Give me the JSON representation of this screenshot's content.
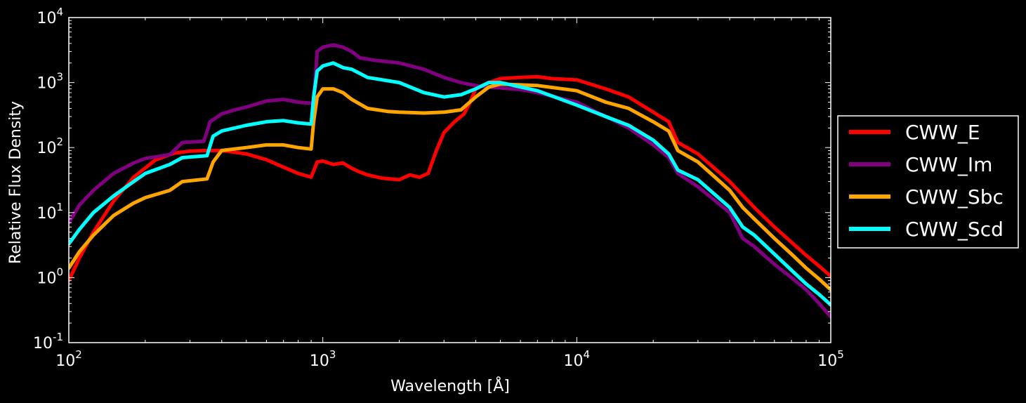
{
  "chart_data": {
    "type": "line",
    "xlabel": "Wavelength [Å]",
    "ylabel": "Relative Flux Density",
    "x_scale": "log",
    "y_scale": "log",
    "xlim": [
      100,
      100000
    ],
    "ylim": [
      0.1,
      10000
    ],
    "grid": false,
    "legend_position": "outside-right",
    "x_ticks": [
      {
        "base": "10",
        "exp": "2",
        "value": 100
      },
      {
        "base": "10",
        "exp": "3",
        "value": 1000
      },
      {
        "base": "10",
        "exp": "4",
        "value": 10000
      },
      {
        "base": "10",
        "exp": "5",
        "value": 100000
      }
    ],
    "y_ticks": [
      {
        "base": "10",
        "exp": "-1",
        "value": 0.1
      },
      {
        "base": "10",
        "exp": "0",
        "value": 1
      },
      {
        "base": "10",
        "exp": "1",
        "value": 10
      },
      {
        "base": "10",
        "exp": "2",
        "value": 100
      },
      {
        "base": "10",
        "exp": "3",
        "value": 1000
      },
      {
        "base": "10",
        "exp": "4",
        "value": 10000
      }
    ],
    "series": [
      {
        "name": "CWW_E",
        "color": "#ff0000",
        "points": [
          [
            100,
            0.9
          ],
          [
            110,
            2
          ],
          [
            125,
            5
          ],
          [
            150,
            15
          ],
          [
            180,
            35
          ],
          [
            220,
            65
          ],
          [
            260,
            82
          ],
          [
            300,
            88
          ],
          [
            350,
            90
          ],
          [
            400,
            90
          ],
          [
            500,
            80
          ],
          [
            600,
            65
          ],
          [
            700,
            50
          ],
          [
            800,
            40
          ],
          [
            900,
            35
          ],
          [
            950,
            60
          ],
          [
            1000,
            62
          ],
          [
            1100,
            55
          ],
          [
            1200,
            58
          ],
          [
            1300,
            48
          ],
          [
            1400,
            42
          ],
          [
            1500,
            38
          ],
          [
            1700,
            34
          ],
          [
            2000,
            32
          ],
          [
            2200,
            38
          ],
          [
            2400,
            35
          ],
          [
            2600,
            40
          ],
          [
            2800,
            90
          ],
          [
            3000,
            170
          ],
          [
            3300,
            250
          ],
          [
            3600,
            330
          ],
          [
            3800,
            500
          ],
          [
            4000,
            800
          ],
          [
            4500,
            1000
          ],
          [
            5000,
            1150
          ],
          [
            6000,
            1200
          ],
          [
            7000,
            1230
          ],
          [
            8000,
            1150
          ],
          [
            10000,
            1100
          ],
          [
            13000,
            800
          ],
          [
            16000,
            600
          ],
          [
            20000,
            350
          ],
          [
            23000,
            250
          ],
          [
            25000,
            120
          ],
          [
            30000,
            80
          ],
          [
            40000,
            30
          ],
          [
            50000,
            12
          ],
          [
            60000,
            6
          ],
          [
            70000,
            3.5
          ],
          [
            80000,
            2.2
          ],
          [
            90000,
            1.5
          ],
          [
            100000,
            1.05
          ]
        ]
      },
      {
        "name": "CWW_Im",
        "color": "#800080",
        "points": [
          [
            100,
            7
          ],
          [
            110,
            13
          ],
          [
            125,
            22
          ],
          [
            150,
            40
          ],
          [
            180,
            58
          ],
          [
            200,
            68
          ],
          [
            250,
            78
          ],
          [
            280,
            120
          ],
          [
            340,
            125
          ],
          [
            360,
            250
          ],
          [
            400,
            330
          ],
          [
            450,
            380
          ],
          [
            500,
            420
          ],
          [
            600,
            520
          ],
          [
            700,
            550
          ],
          [
            800,
            500
          ],
          [
            900,
            480
          ],
          [
            920,
            500
          ],
          [
            950,
            3000
          ],
          [
            1000,
            3500
          ],
          [
            1100,
            3800
          ],
          [
            1200,
            3500
          ],
          [
            1300,
            3000
          ],
          [
            1400,
            2400
          ],
          [
            1600,
            2200
          ],
          [
            2000,
            2000
          ],
          [
            2500,
            1600
          ],
          [
            3000,
            1200
          ],
          [
            3500,
            1000
          ],
          [
            4000,
            900
          ],
          [
            4500,
            850
          ],
          [
            5000,
            830
          ],
          [
            6000,
            780
          ],
          [
            7000,
            700
          ],
          [
            10000,
            500
          ],
          [
            13000,
            300
          ],
          [
            16000,
            200
          ],
          [
            20000,
            110
          ],
          [
            23000,
            70
          ],
          [
            25000,
            40
          ],
          [
            30000,
            25
          ],
          [
            40000,
            10
          ],
          [
            45000,
            4
          ],
          [
            50000,
            3
          ],
          [
            60000,
            1.6
          ],
          [
            70000,
            1
          ],
          [
            80000,
            0.65
          ],
          [
            90000,
            0.4
          ],
          [
            100000,
            0.25
          ]
        ]
      },
      {
        "name": "CWW_Sbc",
        "color": "#ffa500",
        "points": [
          [
            100,
            1.4
          ],
          [
            110,
            2.5
          ],
          [
            125,
            4.5
          ],
          [
            150,
            9
          ],
          [
            180,
            14
          ],
          [
            200,
            17
          ],
          [
            250,
            22
          ],
          [
            280,
            30
          ],
          [
            350,
            33
          ],
          [
            370,
            60
          ],
          [
            400,
            90
          ],
          [
            500,
            100
          ],
          [
            600,
            110
          ],
          [
            700,
            110
          ],
          [
            800,
            100
          ],
          [
            900,
            95
          ],
          [
            920,
            250
          ],
          [
            950,
            600
          ],
          [
            1000,
            800
          ],
          [
            1100,
            800
          ],
          [
            1200,
            700
          ],
          [
            1300,
            550
          ],
          [
            1500,
            400
          ],
          [
            1800,
            360
          ],
          [
            2000,
            350
          ],
          [
            2500,
            340
          ],
          [
            3000,
            350
          ],
          [
            3500,
            380
          ],
          [
            4000,
            600
          ],
          [
            4500,
            850
          ],
          [
            5000,
            950
          ],
          [
            7000,
            900
          ],
          [
            10000,
            750
          ],
          [
            13000,
            500
          ],
          [
            16000,
            400
          ],
          [
            20000,
            250
          ],
          [
            23000,
            180
          ],
          [
            25000,
            90
          ],
          [
            30000,
            60
          ],
          [
            40000,
            22
          ],
          [
            45000,
            12
          ],
          [
            50000,
            8
          ],
          [
            60000,
            4
          ],
          [
            70000,
            2.3
          ],
          [
            80000,
            1.4
          ],
          [
            90000,
            0.95
          ],
          [
            100000,
            0.65
          ]
        ]
      },
      {
        "name": "CWW_Scd",
        "color": "#00ffff",
        "points": [
          [
            100,
            3.3
          ],
          [
            110,
            5.5
          ],
          [
            125,
            10
          ],
          [
            150,
            18
          ],
          [
            180,
            30
          ],
          [
            200,
            40
          ],
          [
            250,
            55
          ],
          [
            280,
            70
          ],
          [
            350,
            75
          ],
          [
            370,
            150
          ],
          [
            400,
            180
          ],
          [
            500,
            220
          ],
          [
            600,
            250
          ],
          [
            700,
            260
          ],
          [
            800,
            240
          ],
          [
            900,
            230
          ],
          [
            920,
            600
          ],
          [
            950,
            1500
          ],
          [
            1000,
            1800
          ],
          [
            1100,
            2000
          ],
          [
            1200,
            1700
          ],
          [
            1300,
            1600
          ],
          [
            1500,
            1200
          ],
          [
            2000,
            1000
          ],
          [
            2500,
            700
          ],
          [
            3000,
            600
          ],
          [
            3500,
            650
          ],
          [
            4000,
            800
          ],
          [
            4500,
            1000
          ],
          [
            5000,
            1000
          ],
          [
            7000,
            750
          ],
          [
            10000,
            450
          ],
          [
            13000,
            300
          ],
          [
            16000,
            220
          ],
          [
            20000,
            130
          ],
          [
            23000,
            80
          ],
          [
            25000,
            45
          ],
          [
            30000,
            32
          ],
          [
            40000,
            12
          ],
          [
            45000,
            6
          ],
          [
            50000,
            4.5
          ],
          [
            60000,
            2.3
          ],
          [
            70000,
            1.3
          ],
          [
            80000,
            0.8
          ],
          [
            90000,
            0.55
          ],
          [
            100000,
            0.38
          ]
        ]
      }
    ]
  }
}
